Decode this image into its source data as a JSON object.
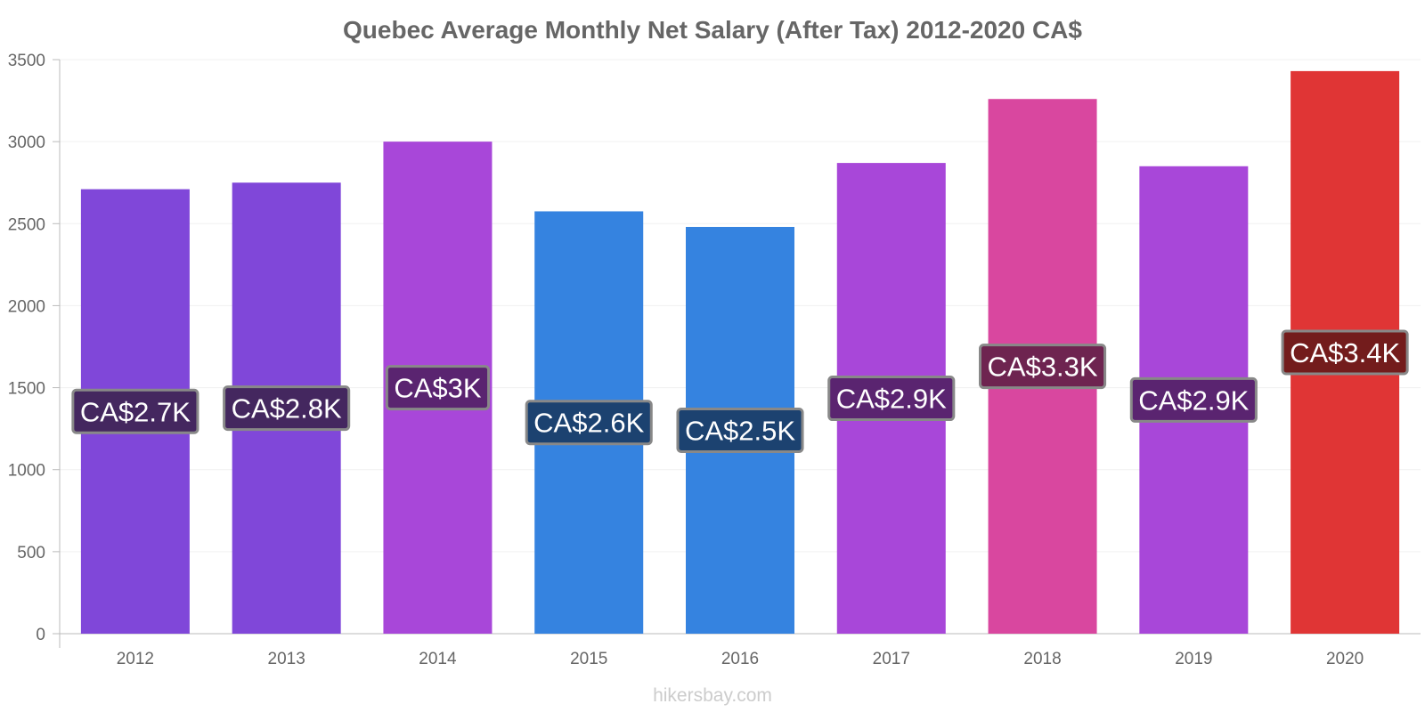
{
  "chart_data": {
    "type": "bar",
    "title": "Quebec Average Monthly Net Salary (After Tax) 2012-2020 CA$",
    "xlabel": "",
    "ylabel": "",
    "categories": [
      "2012",
      "2013",
      "2014",
      "2015",
      "2016",
      "2017",
      "2018",
      "2019",
      "2020"
    ],
    "values": [
      2710,
      2750,
      3000,
      2575,
      2480,
      2870,
      3260,
      2850,
      3430
    ],
    "data_labels": [
      "CA$2.7K",
      "CA$2.8K",
      "CA$3K",
      "CA$2.6K",
      "CA$2.5K",
      "CA$2.9K",
      "CA$3.3K",
      "CA$2.9K",
      "CA$3.4K"
    ],
    "bar_colors": [
      "#8047d9",
      "#8047d9",
      "#a847d9",
      "#3583e0",
      "#3583e0",
      "#a847d9",
      "#d9479f",
      "#a847d9",
      "#e03535"
    ],
    "label_box_colors": [
      "#44275f",
      "#44275f",
      "#5a2470",
      "#1c4270",
      "#1c4270",
      "#5a2470",
      "#6e2450",
      "#5a2470",
      "#731c1c"
    ],
    "ylim": [
      0,
      3500
    ],
    "yticks": [
      0,
      500,
      1000,
      1500,
      2000,
      2500,
      3000,
      3500
    ],
    "grid": true,
    "legend": "none"
  },
  "watermark": "hikersbay.com"
}
